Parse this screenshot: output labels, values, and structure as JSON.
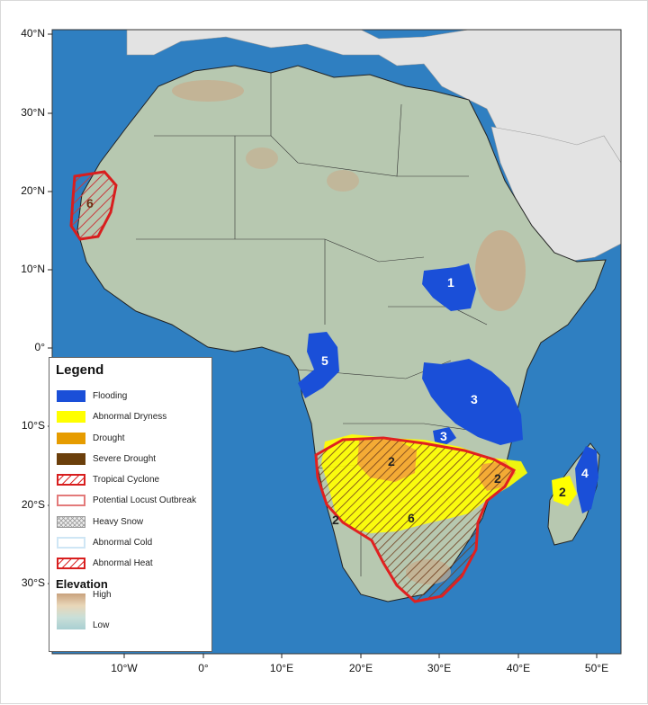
{
  "axes": {
    "lat_ticks": [
      "40°N",
      "30°N",
      "20°N",
      "10°N",
      "0°",
      "10°S",
      "20°S",
      "30°S"
    ],
    "lon_ticks": [
      "10°W",
      "0°",
      "10°E",
      "20°E",
      "30°E",
      "40°E",
      "50°E"
    ]
  },
  "legend": {
    "title": "Legend",
    "items": [
      {
        "label": "Flooding",
        "color": "#1a4fd8",
        "style": "solid"
      },
      {
        "label": "Abnormal Dryness",
        "color": "#ffff00",
        "style": "solid"
      },
      {
        "label": "Drought",
        "color": "#e69c00",
        "style": "solid"
      },
      {
        "label": "Severe Drought",
        "color": "#6b3f0b",
        "style": "solid"
      },
      {
        "label": "Tropical Cyclone",
        "color": "#e32020",
        "style": "hatch-red"
      },
      {
        "label": "Potential Locust Outbreak",
        "color": "#e37a7a",
        "style": "outline"
      },
      {
        "label": "Heavy Snow",
        "color": "#c0c0c0",
        "style": "crosshatch"
      },
      {
        "label": "Abnormal Cold",
        "color": "#cfe6f5",
        "style": "outline-blue"
      },
      {
        "label": "Abnormal Heat",
        "color": "#d81e1e",
        "style": "hatch-heat"
      }
    ],
    "elevation": {
      "title": "Elevation",
      "high": "High",
      "low": "Low"
    }
  },
  "hazards": [
    {
      "id": "west-sahara-heat",
      "number": "6"
    },
    {
      "id": "ethiopia-flood",
      "number": "1"
    },
    {
      "id": "congo-flood",
      "number": "5"
    },
    {
      "id": "eastafrica-flood",
      "number": "3"
    },
    {
      "id": "malawi-flood",
      "number": "3"
    },
    {
      "id": "zambia-drought",
      "number": "2"
    },
    {
      "id": "mozambique-dryness",
      "number": "2"
    },
    {
      "id": "namibia-dryness",
      "number": "2"
    },
    {
      "id": "southern-heat",
      "number": "6"
    },
    {
      "id": "madagascar-flood",
      "number": "4"
    },
    {
      "id": "madagascar-dryness",
      "number": "2"
    }
  ],
  "colors": {
    "ocean": "#2f7fc1",
    "land": "#b7c8b0",
    "highland": "#c8ab8c",
    "outside": "#e6e6e6"
  }
}
